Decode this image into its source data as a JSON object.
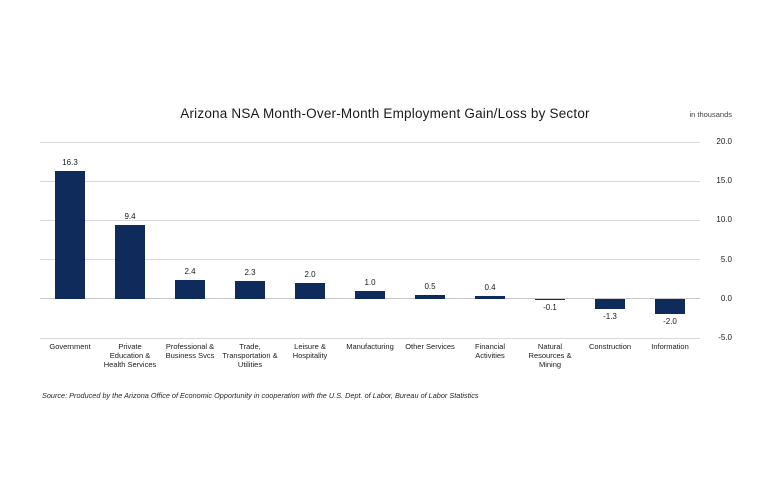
{
  "header": {
    "title": "Arizona NSA Month-Over-Month Employment Gain/Loss by Sector",
    "units_label": "in thousands"
  },
  "footer": {
    "source": "Source: Produced by the Arizona Office of Economic Opportunity in cooperation with the U.S. Dept. of Labor, Bureau of Labor Statistics"
  },
  "colors": {
    "bar": "#0f2b5c",
    "gridline": "#d9d9d9",
    "zero_line": "#c6c6c6",
    "text": "#1a1a1a"
  },
  "chart_data": {
    "type": "bar",
    "title": "Arizona NSA Month-Over-Month Employment Gain/Loss by Sector",
    "units": "in thousands",
    "categories": [
      "Government",
      "Private\nEducation &\nHealth Services",
      "Professional &\nBusiness Svcs",
      "Trade,\nTransportation &\nUtilities",
      "Leisure &\nHospitality",
      "Manufacturing",
      "Other Services",
      "Financial\nActivities",
      "Natural\nResources &\nMining",
      "Construction",
      "Information"
    ],
    "values": [
      16.3,
      9.4,
      2.4,
      2.3,
      2.0,
      1.0,
      0.5,
      0.4,
      -0.1,
      -1.3,
      -2.0
    ],
    "xlabel": "",
    "ylabel": "in thousands",
    "ylim": [
      -5,
      20
    ],
    "yticks": [
      20,
      15,
      10,
      5,
      0,
      -5
    ],
    "ytick_labels": [
      "20.0",
      "15.0",
      "10.0",
      "5.0",
      "0.0",
      "-5.0"
    ],
    "grid": true,
    "legend": false,
    "data_labels": true,
    "yaxis_position": "right"
  }
}
